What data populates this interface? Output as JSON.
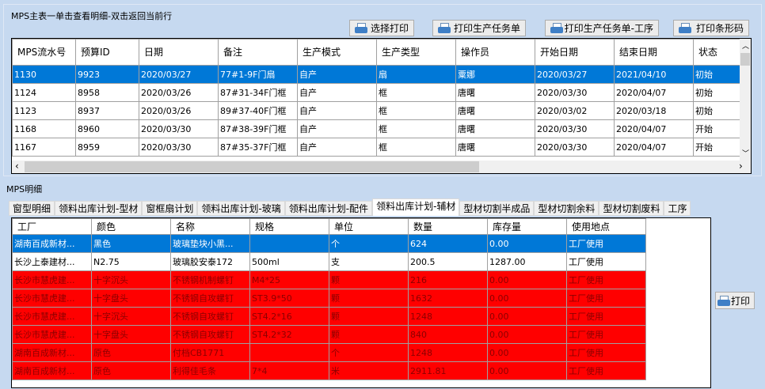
{
  "top": {
    "title": "MPS主表一单击查看明细-双击返回当前行",
    "buttons": [
      "选择打印",
      "打印生产任务单",
      "打印生产任务单-工序",
      "打印条形码"
    ],
    "columns": [
      "MPS流水号",
      "预算ID",
      "日期",
      "备注",
      "生产模式",
      "生产类型",
      "操作员",
      "开始日期",
      "结束日期",
      "状态"
    ],
    "rows": [
      [
        "1130",
        "9923",
        "2020/03/27",
        "77#1-9F门扇",
        "自产",
        "扇",
        "粟娜",
        "2020/03/27",
        "2021/04/10",
        "初始"
      ],
      [
        "1124",
        "8958",
        "2020/03/26",
        "87#31-34F门框",
        "自产",
        "框",
        "唐曙",
        "2020/03/30",
        "2020/04/07",
        "初始"
      ],
      [
        "1123",
        "8937",
        "2020/03/26",
        "89#37-40F门框",
        "自产",
        "框",
        "唐曙",
        "2020/03/02",
        "2020/03/18",
        "初始"
      ],
      [
        "1168",
        "8960",
        "2020/03/30",
        "87#38-39F门框",
        "自产",
        "框",
        "唐曙",
        "2020/03/30",
        "2020/04/07",
        "开始"
      ],
      [
        "1167",
        "8959",
        "2020/03/30",
        "87#35-37F门框",
        "自产",
        "框",
        "唐曙",
        "2020/03/30",
        "2020/04/07",
        "开始"
      ]
    ],
    "selected_row": 0
  },
  "detail": {
    "title": "MPS明细",
    "tabs": [
      "窗型明细",
      "领料出库计划-型材",
      "窗框扇计划",
      "领料出库计划-玻璃",
      "领料出库计划-配件",
      "领料出库计划-辅材",
      "型材切割半成品",
      "型材切割余料",
      "型材切割废料",
      "工序"
    ],
    "active_tab": 5,
    "columns": [
      "工厂",
      "颜色",
      "名称",
      "规格",
      "单位",
      "数量",
      "库存量",
      "使用地点"
    ],
    "rows": [
      [
        "湖南百成新材...",
        "黑色",
        "玻璃垫块小黑...",
        "",
        "个",
        "624",
        "0.00",
        "工厂使用"
      ],
      [
        "长沙上泰建材...",
        "N2.75",
        "玻璃胶安泰172",
        "500ml",
        "支",
        "200.5",
        "1287.00",
        "工厂使用"
      ],
      [
        "长沙市慧虎建...",
        "十字沉头",
        "不锈钢机制螺钉",
        "M4*25",
        "颗",
        "216",
        "0.00",
        "工厂使用"
      ],
      [
        "长沙市慧虎建...",
        "十字盘头",
        "不锈钢自攻螺钉",
        "ST3.9*50",
        "颗",
        "1632",
        "0.00",
        "工厂使用"
      ],
      [
        "长沙市慧虎建...",
        "十字沉头",
        "不锈钢自攻螺钉",
        "ST4.2*16",
        "颗",
        "1248",
        "0.00",
        "工厂使用"
      ],
      [
        "长沙市慧虎建...",
        "十字盘头",
        "不锈钢自攻螺钉",
        "ST4.2*32",
        "颗",
        "840",
        "0.00",
        "工厂使用"
      ],
      [
        "湖南百成新材...",
        "原色",
        "付档CB1771",
        "",
        "个",
        "1248",
        "0.00",
        "工厂使用"
      ],
      [
        "湖南百成新材...",
        "原色",
        "利得佳毛条",
        "7*4",
        "米",
        "2911.81",
        "0.00",
        "工厂使用"
      ]
    ],
    "row_styles": [
      "selected",
      "normal",
      "red",
      "red",
      "red",
      "red",
      "red",
      "red"
    ],
    "print_button": "打印"
  },
  "colors": {
    "background": "#c6d9f0",
    "selection": "#0078d7",
    "warning_row": "#ff0000"
  }
}
